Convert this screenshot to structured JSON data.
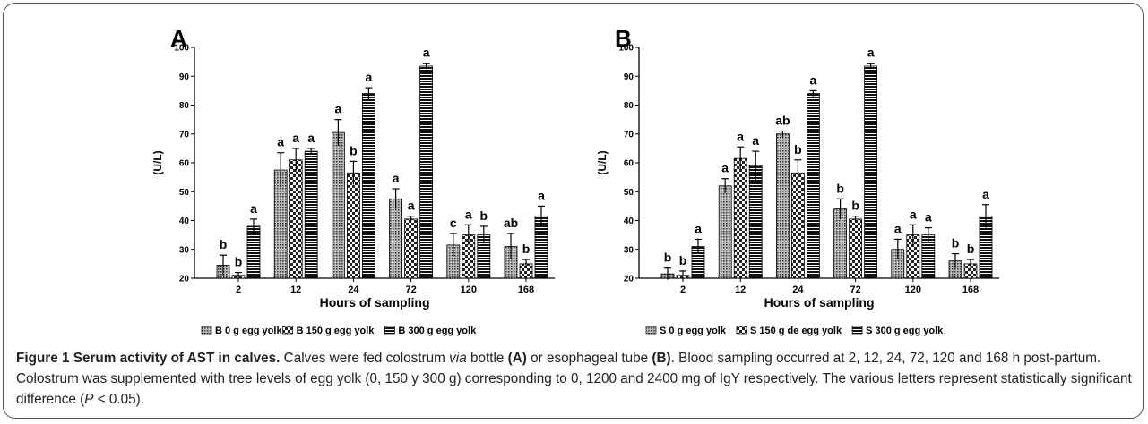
{
  "chart_data": [
    {
      "type": "bar",
      "panel": "A",
      "ylabel": "(U/L)",
      "xlabel": "Hours of sampling",
      "categories": [
        "2",
        "12",
        "24",
        "72",
        "120",
        "168"
      ],
      "ylim": [
        20,
        100
      ],
      "yticks": [
        20,
        30,
        40,
        50,
        60,
        70,
        80,
        90,
        100
      ],
      "series": [
        {
          "name": "B 0 g egg yolk",
          "pattern": "dots",
          "values": [
            24.5,
            57.5,
            70.5,
            47.5,
            31.5,
            31
          ],
          "errors": [
            3.5,
            6,
            4.5,
            3.5,
            4,
            4.5
          ],
          "letters": [
            "b",
            "a",
            "a",
            "a",
            "c",
            "ab"
          ]
        },
        {
          "name": "B 150 g egg yolk",
          "pattern": "checker",
          "values": [
            21,
            61,
            56.5,
            40.5,
            35,
            25
          ],
          "errors": [
            1,
            4,
            4,
            1,
            3.5,
            1.5
          ],
          "letters": [
            "b",
            "a",
            "b",
            "a",
            "a",
            "b"
          ]
        },
        {
          "name": "B 300 g egg yolk",
          "pattern": "stripes",
          "values": [
            38,
            64,
            84,
            93.5,
            35,
            41.5
          ],
          "errors": [
            2.5,
            1,
            2,
            1,
            3,
            3.5
          ],
          "letters": [
            "a",
            "a",
            "a",
            "a",
            "b",
            "a"
          ]
        }
      ]
    },
    {
      "type": "bar",
      "panel": "B",
      "ylabel": "(U/L)",
      "xlabel": "Hours of sampling",
      "categories": [
        "2",
        "12",
        "24",
        "72",
        "120",
        "168"
      ],
      "ylim": [
        20,
        100
      ],
      "yticks": [
        20,
        30,
        40,
        50,
        60,
        70,
        80,
        90,
        100
      ],
      "series": [
        {
          "name": "S 0 g egg yolk",
          "pattern": "dots",
          "values": [
            21.5,
            52,
            70,
            44,
            30,
            26
          ],
          "errors": [
            2,
            2.5,
            1,
            3.5,
            3.5,
            2.5
          ],
          "letters": [
            "b",
            "a",
            "ab",
            "b",
            "a",
            "b"
          ]
        },
        {
          "name": "S 150 g de egg yolk",
          "pattern": "checker",
          "values": [
            21,
            61.5,
            56.5,
            40.5,
            35,
            25
          ],
          "errors": [
            1.5,
            4,
            4.5,
            1,
            3.5,
            1.5
          ],
          "letters": [
            "b",
            "a",
            "b",
            "b",
            "a",
            "b"
          ]
        },
        {
          "name": "S 300 g egg yolk",
          "pattern": "stripes",
          "values": [
            31,
            59,
            84,
            93.5,
            35,
            41.5
          ],
          "errors": [
            2.5,
            5,
            1,
            1,
            2.5,
            4
          ],
          "letters": [
            "a",
            "a",
            "a",
            "a",
            "a",
            "a"
          ]
        }
      ]
    }
  ],
  "caption": [
    {
      "text": "Figure 1 Serum activity of AST in calves.",
      "style": "bold"
    },
    {
      "text": " Calves were fed colostrum ",
      "style": "plain"
    },
    {
      "text": "via",
      "style": "italic"
    },
    {
      "text": " bottle ",
      "style": "plain"
    },
    {
      "text": "(A)",
      "style": "bold"
    },
    {
      "text": " or esophageal tube ",
      "style": "plain"
    },
    {
      "text": "(B)",
      "style": "bold"
    },
    {
      "text": ". Blood sampling occurred at 2, 12, 24, 72, 120 and 168 h post-partum. Colostrum was supplemented with tree levels of egg yolk (0, 150 y 300 g) corresponding to 0, 1200 and 2400 mg of IgY respectively. The various letters represent statistically significant difference (",
      "style": "plain"
    },
    {
      "text": "P",
      "style": "italic"
    },
    {
      "text": " < 0.05).",
      "style": "plain"
    }
  ]
}
